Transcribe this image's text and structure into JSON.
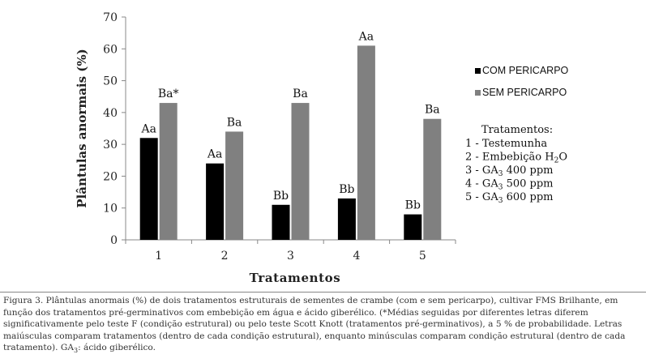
{
  "chart_data": {
    "type": "bar",
    "categories": [
      "1",
      "2",
      "3",
      "4",
      "5"
    ],
    "series": [
      {
        "name": "COM PERICARPO",
        "color": "#000000",
        "values": [
          32,
          24,
          11,
          13,
          8
        ],
        "labels": [
          "Aa",
          "Aa",
          "Bb",
          "Bb",
          "Bb"
        ]
      },
      {
        "name": "SEM PERICARPO",
        "color": "#808080",
        "values": [
          43,
          34,
          43,
          61,
          38
        ],
        "labels": [
          "Ba*",
          "Ba",
          "Ba",
          "Aa",
          "Ba"
        ]
      }
    ],
    "ylim": [
      0,
      70
    ],
    "yticks": [
      "0",
      "10",
      "20",
      "30",
      "40",
      "50",
      "60",
      "70"
    ],
    "xlabel": "Tratamentos",
    "ylabel": "Plântulas anormais (%)",
    "grid": false,
    "legend_position": "right",
    "treatments": {
      "title": "Tratamentos:",
      "items": [
        {
          "text": "1 - Testemunha"
        },
        {
          "text": "2 -  Embebição H",
          "sub": "2",
          "after": "O"
        },
        {
          "text": "3 - GA",
          "sub": "3",
          "after": " 400 ppm"
        },
        {
          "text": "4 - GA",
          "sub": "3",
          "after": "  500 ppm"
        },
        {
          "text": "5 - GA",
          "sub": "3",
          "after": " 600 ppm"
        }
      ]
    }
  },
  "caption": {
    "text": "Figura 3. Plântulas anormais (%) de dois tratamentos estruturais de sementes de crambe (com e sem pericarpo), cultivar FMS Brilhante, em função dos tratamentos pré-germinativos com embebição em água e ácido giberélico. (*Médias seguidas por diferentes letras diferem significativamente pelo teste F (condição estrutural) ou pelo teste Scott Knott (tratamentos pré-germinativos), a 5 % de probabilidade. Letras maiúsculas comparam tratamentos (dentro de cada condição estrutural), enquanto minúsculas comparam condição estrutural (dentro de cada tratamento). GA",
    "sub": "3",
    "after": ": ácido giberélico."
  }
}
